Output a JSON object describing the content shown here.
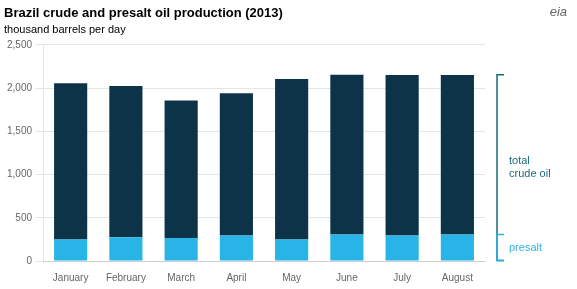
{
  "chart_data": {
    "type": "bar",
    "title": "Brazil crude and presalt oil production (2013)",
    "subtitle": "thousand barrels per day",
    "categories": [
      "January",
      "February",
      "March",
      "April",
      "May",
      "June",
      "July",
      "August"
    ],
    "series": [
      {
        "name": "presalt",
        "color": "#29b4e8",
        "values": [
          250,
          275,
          265,
          295,
          250,
          305,
          295,
          305
        ]
      },
      {
        "color": "#0d3349",
        "values": [
          1805,
          1750,
          1590,
          1645,
          1855,
          1850,
          1855,
          1845
        ]
      }
    ],
    "stacked": true,
    "ylim": [
      0,
      2500
    ],
    "yticks": [
      0,
      500,
      {
        "value": 1000,
        "label": "1,000"
      },
      {
        "value": 1500,
        "label": "1,500"
      },
      {
        "value": 2000,
        "label": "2,000"
      },
      {
        "value": 2500,
        "label": "2,500"
      }
    ],
    "grid": true,
    "annotations": [
      {
        "text": "total\ncrude oil",
        "color": "#1a6b7a"
      },
      {
        "text": "presalt",
        "color": "#29b4e8"
      },
      {
        "text": "eia",
        "color": "#666666"
      }
    ]
  }
}
